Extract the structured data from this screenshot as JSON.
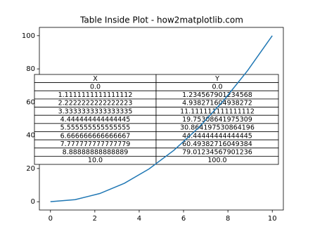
{
  "chart_data": {
    "type": "line",
    "title": "Table Inside Plot - how2matplotlib.com",
    "x": [
      0,
      1.1111111111111112,
      2.2222222222222223,
      3.3333333333333335,
      4.444444444444445,
      5.555555555555555,
      6.666666666666667,
      7.777777777777779,
      8.88888888888889,
      10
    ],
    "series": [
      {
        "color": "#1f77b4",
        "values": [
          0,
          1.234567901234568,
          4.938271604938272,
          11.111111111111112,
          19.753086419753085,
          30.864197530864196,
          44.44444444444445,
          60.49382716049384,
          79.01234567901236,
          100
        ]
      }
    ],
    "xlim": [
      -0.5,
      10.5
    ],
    "ylim": [
      -5,
      105
    ],
    "xticks": [
      0,
      2,
      4,
      6,
      8,
      10
    ],
    "yticks": [
      0,
      20,
      40,
      60,
      80,
      100
    ],
    "table": {
      "columns": [
        "X",
        "Y"
      ],
      "rows": [
        [
          "0.0",
          "0.0"
        ],
        [
          "1.1111111111111112",
          "1.234567901234568"
        ],
        [
          "2.2222222222222223",
          "4.938271604938272"
        ],
        [
          "3.3333333333333335",
          "11.111111111111112"
        ],
        [
          "4.444444444444445",
          "19.75308641975309"
        ],
        [
          "5.555555555555555",
          "30.864197530864196"
        ],
        [
          "6.666666666666667",
          "44.44444444444445"
        ],
        [
          "7.777777777777779",
          "60.49382716049384"
        ],
        [
          "8.88888888888889",
          "79.01234567901236"
        ],
        [
          "10.0",
          "100.0"
        ]
      ]
    }
  }
}
